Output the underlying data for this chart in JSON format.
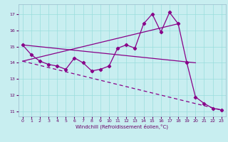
{
  "xlabel": "Windchill (Refroidissement éolien,°C)",
  "bg_color": "#c8eef0",
  "line_color": "#880088",
  "grid_color": "#99dddd",
  "xlim": [
    -0.5,
    23.5
  ],
  "ylim": [
    10.7,
    17.6
  ],
  "yticks": [
    11,
    12,
    13,
    14,
    15,
    16,
    17
  ],
  "xticks": [
    0,
    1,
    2,
    3,
    4,
    5,
    6,
    7,
    8,
    9,
    10,
    11,
    12,
    13,
    14,
    15,
    16,
    17,
    18,
    19,
    20,
    21,
    22,
    23
  ],
  "line1_x": [
    0,
    1,
    2,
    3,
    4,
    5,
    6,
    7,
    8,
    9,
    10,
    11,
    12,
    13,
    14,
    15,
    16,
    17,
    18,
    19,
    20,
    21,
    22,
    23
  ],
  "line1_y": [
    15.1,
    14.5,
    14.1,
    13.9,
    13.8,
    13.6,
    14.3,
    14.0,
    13.5,
    13.6,
    13.8,
    14.9,
    15.1,
    14.9,
    16.4,
    17.0,
    15.9,
    17.1,
    16.4,
    14.0,
    11.9,
    11.5,
    11.2,
    11.1
  ],
  "line2_x": [
    0,
    20
  ],
  "line2_y": [
    15.1,
    14.0
  ],
  "line3_x": [
    0,
    23
  ],
  "line3_y": [
    14.1,
    11.1
  ],
  "line4_x": [
    0,
    18
  ],
  "line4_y": [
    14.1,
    16.4
  ]
}
